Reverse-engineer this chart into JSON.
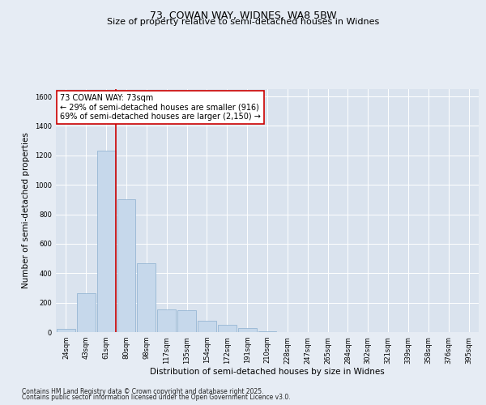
{
  "title_line1": "73, COWAN WAY, WIDNES, WA8 5BW",
  "title_line2": "Size of property relative to semi-detached houses in Widnes",
  "xlabel": "Distribution of semi-detached houses by size in Widnes",
  "ylabel": "Number of semi-detached properties",
  "categories": [
    "24sqm",
    "43sqm",
    "61sqm",
    "80sqm",
    "98sqm",
    "117sqm",
    "135sqm",
    "154sqm",
    "172sqm",
    "191sqm",
    "210sqm",
    "228sqm",
    "247sqm",
    "265sqm",
    "284sqm",
    "302sqm",
    "321sqm",
    "339sqm",
    "358sqm",
    "376sqm",
    "395sqm"
  ],
  "values": [
    20,
    265,
    1230,
    900,
    470,
    155,
    150,
    75,
    50,
    30,
    5,
    2,
    1,
    0,
    0,
    0,
    0,
    0,
    0,
    0,
    0
  ],
  "bar_color": "#c6d8eb",
  "bar_edge_color": "#8baecf",
  "red_line_color": "#cc0000",
  "annotation_line1": "73 COWAN WAY: 73sqm",
  "annotation_line2": "← 29% of semi-detached houses are smaller (916)",
  "annotation_line3": "69% of semi-detached houses are larger (2,150) →",
  "annotation_box_color": "#ffffff",
  "annotation_box_edge": "#cc0000",
  "ylim": [
    0,
    1650
  ],
  "yticks": [
    0,
    200,
    400,
    600,
    800,
    1000,
    1200,
    1400,
    1600
  ],
  "background_color": "#e6ecf4",
  "plot_bg_color": "#dae3ee",
  "footer_line1": "Contains HM Land Registry data © Crown copyright and database right 2025.",
  "footer_line2": "Contains public sector information licensed under the Open Government Licence v3.0.",
  "title_fontsize": 9,
  "subtitle_fontsize": 8,
  "axis_label_fontsize": 7.5,
  "tick_fontsize": 6,
  "annotation_fontsize": 7,
  "footer_fontsize": 5.5
}
